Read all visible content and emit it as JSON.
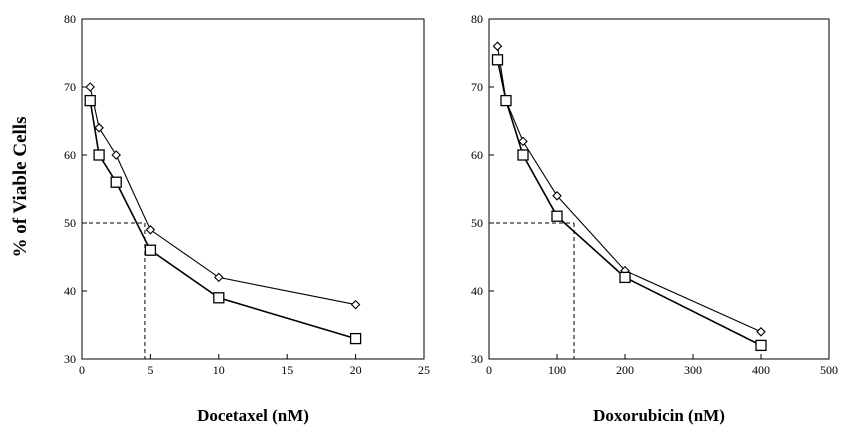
{
  "ylabel": "% of Viable Cells",
  "chart_data": [
    {
      "type": "line",
      "xlabel": "Docetaxel (nM)",
      "xlim": [
        0,
        25
      ],
      "ylim": [
        30,
        80
      ],
      "xticks": [
        0,
        5,
        10,
        15,
        20,
        25
      ],
      "yticks": [
        30,
        40,
        50,
        60,
        70,
        80
      ],
      "series": [
        {
          "marker": "diamond",
          "x": [
            0.6,
            1.25,
            2.5,
            5,
            10,
            20
          ],
          "y": [
            70,
            64,
            60,
            49,
            42,
            38
          ]
        },
        {
          "marker": "square",
          "x": [
            0.6,
            1.25,
            2.5,
            5,
            10,
            20
          ],
          "y": [
            68,
            60,
            56,
            46,
            39,
            33
          ]
        }
      ],
      "ic50": {
        "x": 4.6,
        "y": 50
      }
    },
    {
      "type": "line",
      "xlabel": "Doxorubicin (nM)",
      "xlim": [
        0,
        500
      ],
      "ylim": [
        30,
        80
      ],
      "xticks": [
        0,
        100,
        200,
        300,
        400,
        500
      ],
      "yticks": [
        30,
        40,
        50,
        60,
        70,
        80
      ],
      "series": [
        {
          "marker": "diamond",
          "x": [
            12.5,
            25,
            50,
            100,
            200,
            400
          ],
          "y": [
            76,
            68,
            62,
            54,
            43,
            34
          ]
        },
        {
          "marker": "square",
          "x": [
            12.5,
            25,
            50,
            100,
            200,
            400
          ],
          "y": [
            74,
            68,
            60,
            51,
            42,
            32
          ]
        }
      ],
      "ic50": {
        "x": 125,
        "y": 50
      }
    }
  ]
}
